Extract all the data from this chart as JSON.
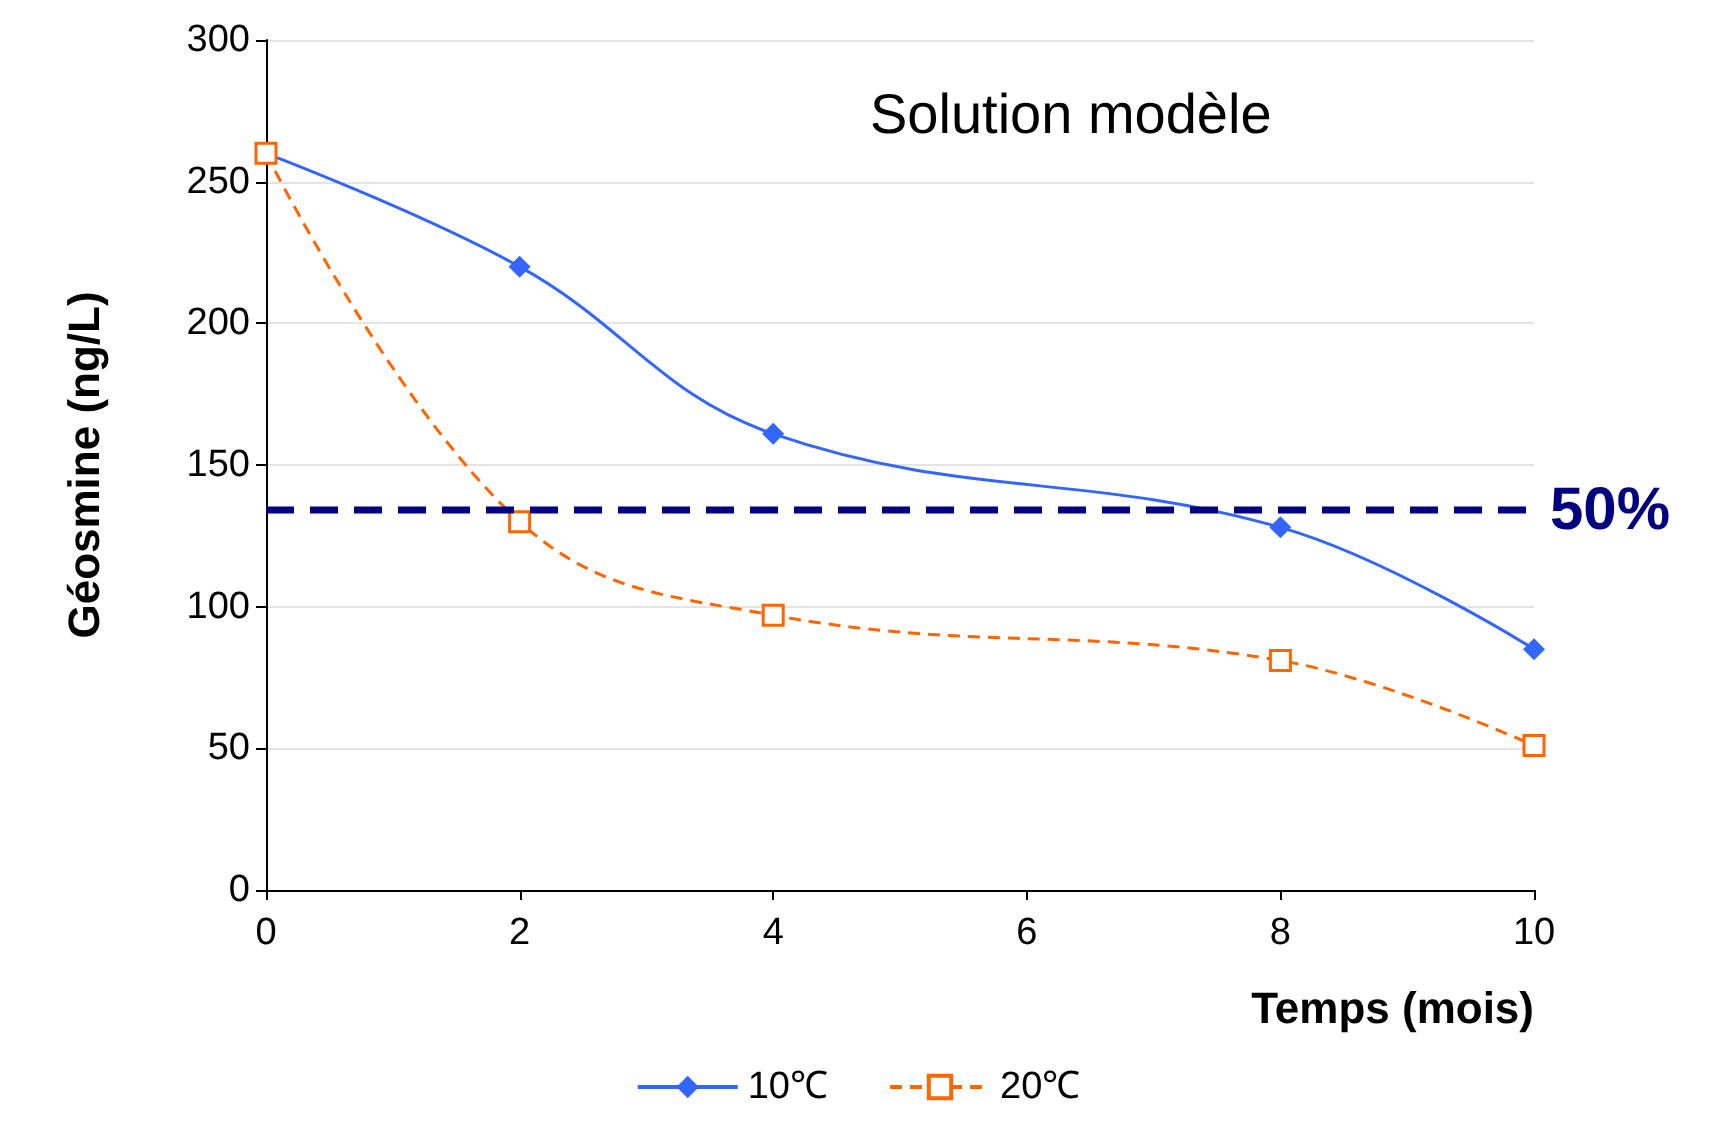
{
  "chart_data": {
    "type": "line",
    "title": "Solution modèle",
    "xlabel": "Temps (mois)",
    "ylabel": "Géosmine (ng/L)",
    "x": [
      0,
      2,
      4,
      8,
      10
    ],
    "series": [
      {
        "name": "10℃",
        "color": "#3366ff",
        "values": [
          260,
          220,
          161,
          128,
          85
        ],
        "marker": "diamond",
        "line_style": "solid"
      },
      {
        "name": "20℃",
        "color": "#ff6600",
        "values": [
          260,
          130,
          97,
          81,
          51
        ],
        "marker": "square",
        "line_style": "dashed"
      }
    ],
    "xlim": [
      0,
      10
    ],
    "xticks": [
      0,
      2,
      4,
      6,
      8,
      10
    ],
    "ylim": [
      0,
      300
    ],
    "yticks": [
      0,
      50,
      100,
      150,
      200,
      250,
      300
    ],
    "ref_lines": [
      {
        "axis": "y",
        "value": 134,
        "color": "#000080",
        "line_style": "dashed"
      }
    ],
    "annotations": [
      {
        "text": "50%",
        "x": 10,
        "y": 134
      }
    ],
    "grid": "y",
    "legend": "bottom"
  }
}
